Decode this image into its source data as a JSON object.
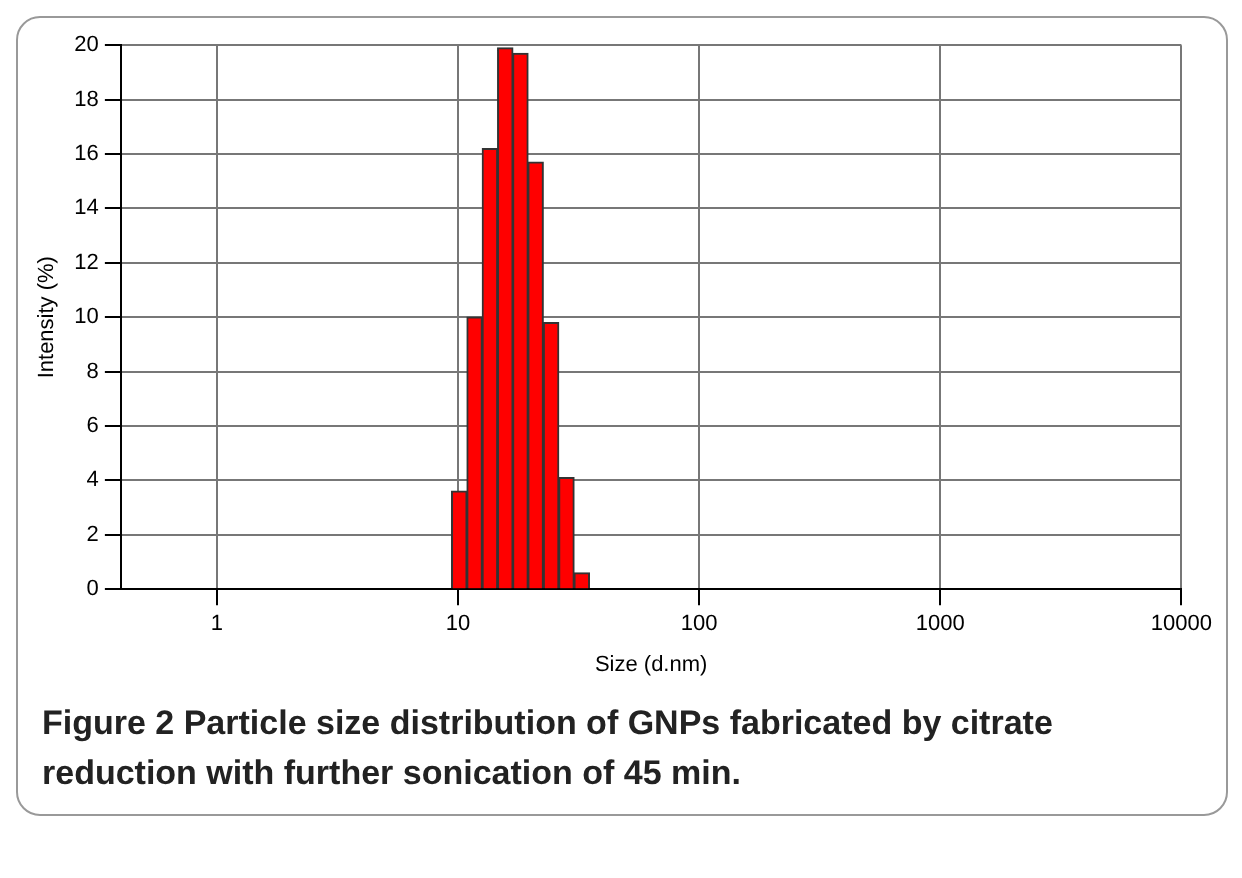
{
  "chart_data": {
    "type": "histogram",
    "xlabel": "Size (d.nm)",
    "ylabel": "Intensity (%)",
    "bins": [
      9.4,
      10.9,
      12.6,
      14.6,
      16.9,
      19.5,
      22.6,
      26.2,
      30.3,
      35.1
    ],
    "values": [
      3.6,
      10.0,
      16.2,
      19.9,
      19.7,
      15.7,
      9.8,
      4.1,
      0.6
    ],
    "color": "#ff0000",
    "log": "x",
    "xlim": [
      0.4,
      10000
    ],
    "xticks": [
      1,
      10,
      100,
      1000,
      10000
    ],
    "ylim": [
      0,
      20
    ],
    "yticks": [
      0,
      2,
      4,
      6,
      8,
      10,
      12,
      14,
      16,
      18,
      20
    ],
    "grid": true,
    "legend": false,
    "annotations": [
      "Figure 2 Particle size distribution of GNPs fabricated by citrate reduction with further sonication of 45 min."
    ]
  }
}
